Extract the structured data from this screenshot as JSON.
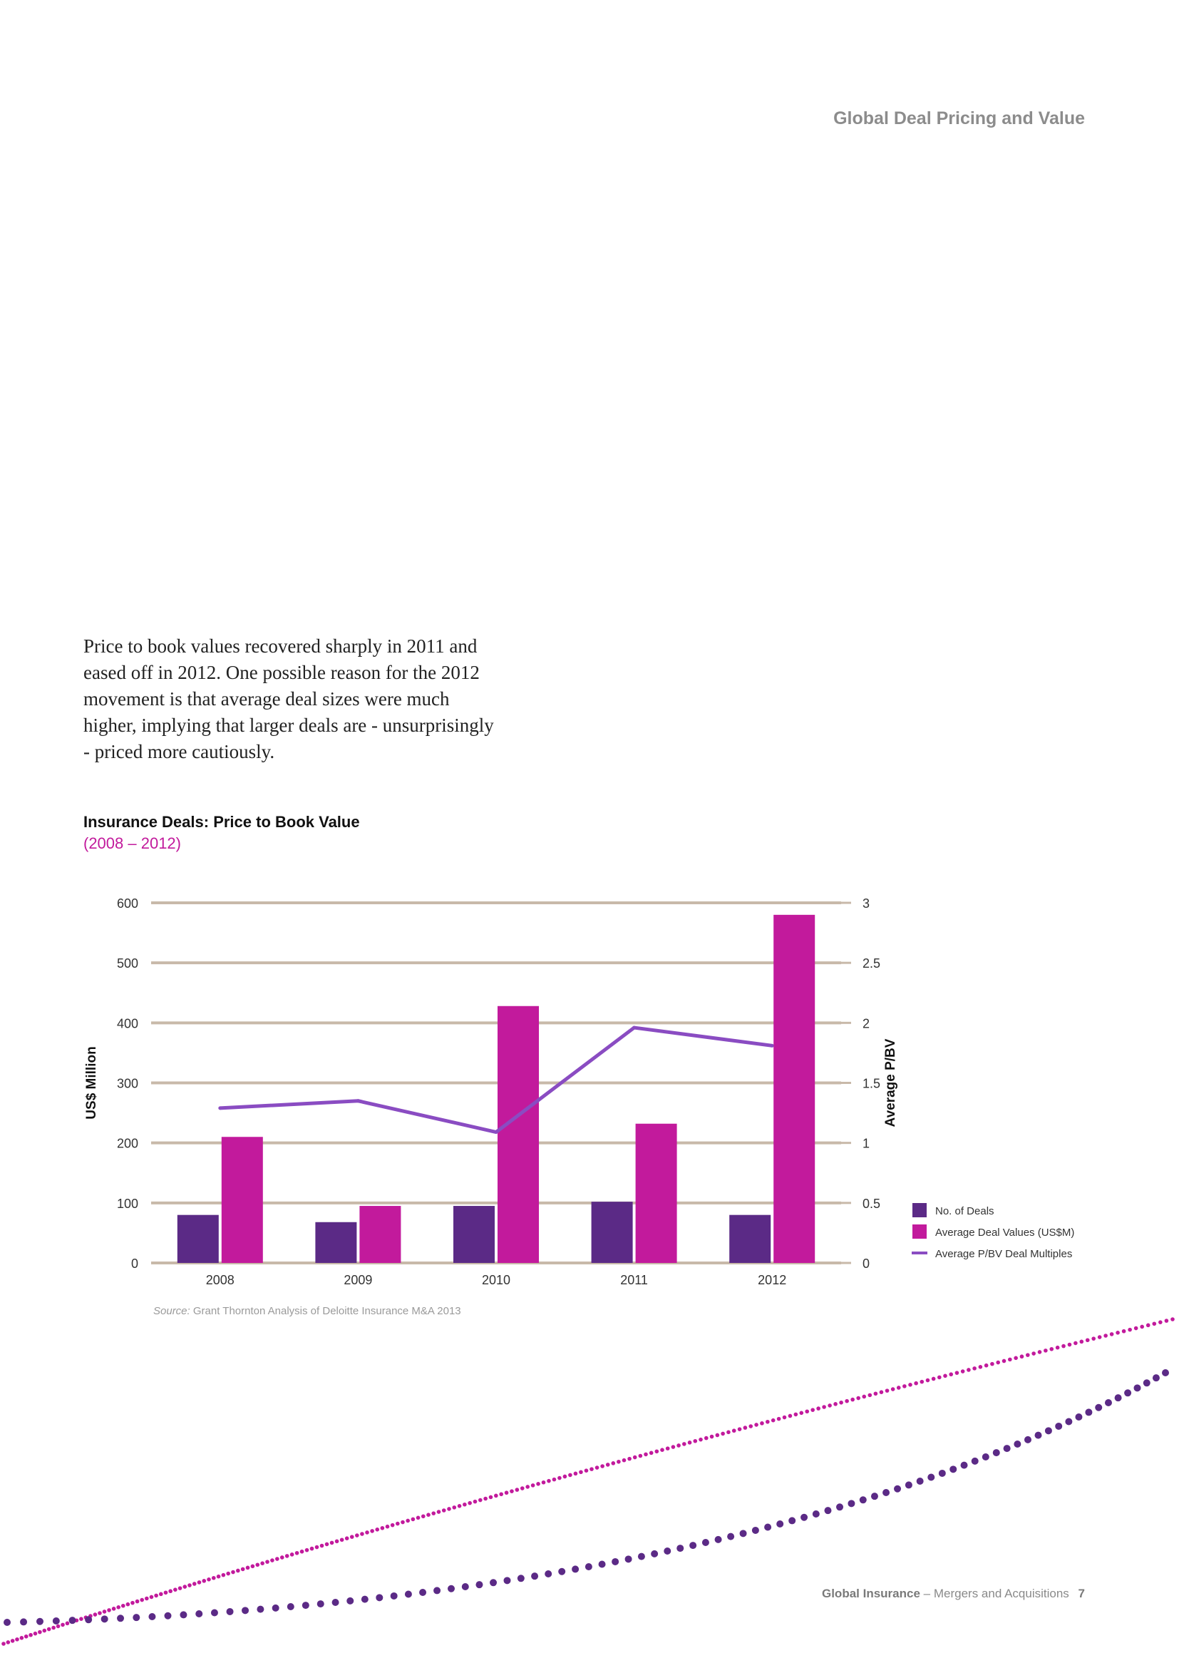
{
  "header": {
    "title": "Global Deal Pricing and Value"
  },
  "body_text": "Price to book values recovered sharply in 2011 and eased off in 2012. One possible reason for the 2012 movement is that average deal sizes were much higher, implying that larger deals are - unsurprisingly - priced more cautiously.",
  "chart_data": {
    "type": "bar",
    "title": "Insurance Deals: Price to Book Value",
    "subtitle": "(2008 – 2012)",
    "categories": [
      "2008",
      "2009",
      "2010",
      "2011",
      "2012"
    ],
    "series": [
      {
        "name": "No. of Deals",
        "type": "bar",
        "axis": "left",
        "color": "#5b2a86",
        "values": [
          80,
          68,
          95,
          102,
          80
        ]
      },
      {
        "name": "Average Deal Values (US$M)",
        "type": "bar",
        "axis": "left",
        "color": "#c21a9c",
        "values": [
          210,
          95,
          428,
          232,
          580
        ]
      },
      {
        "name": "Average P/BV Deal Multiples",
        "type": "line",
        "axis": "right",
        "color": "#8a4cc2",
        "values": [
          1.29,
          1.35,
          1.09,
          1.96,
          1.81
        ]
      }
    ],
    "ylabel": "US$ Million",
    "ylabel_right": "Average P/BV",
    "ylim": [
      0,
      600
    ],
    "ylim_right": [
      0,
      3
    ],
    "yticks": [
      "0",
      "100",
      "200",
      "300",
      "400",
      "500",
      "600"
    ],
    "yticks_right": [
      "0",
      "0.5",
      "1",
      "1.5",
      "2",
      "2.5",
      "3"
    ],
    "grid": true,
    "legend_position": "bottom-right",
    "colors": {
      "grid": "#c8b9a9",
      "axis_text": "#333333"
    }
  },
  "source": {
    "label": "Source:",
    "text": "Grant Thornton Analysis of Deloitte Insurance M&A 2013"
  },
  "footer": {
    "brand": "Global Insurance",
    "dash": "–",
    "subtitle": "Mergers and Acquisitions",
    "page": "7"
  },
  "decoration": {
    "dots_purple": "#5b2a86",
    "dots_magenta": "#c21a9c"
  }
}
